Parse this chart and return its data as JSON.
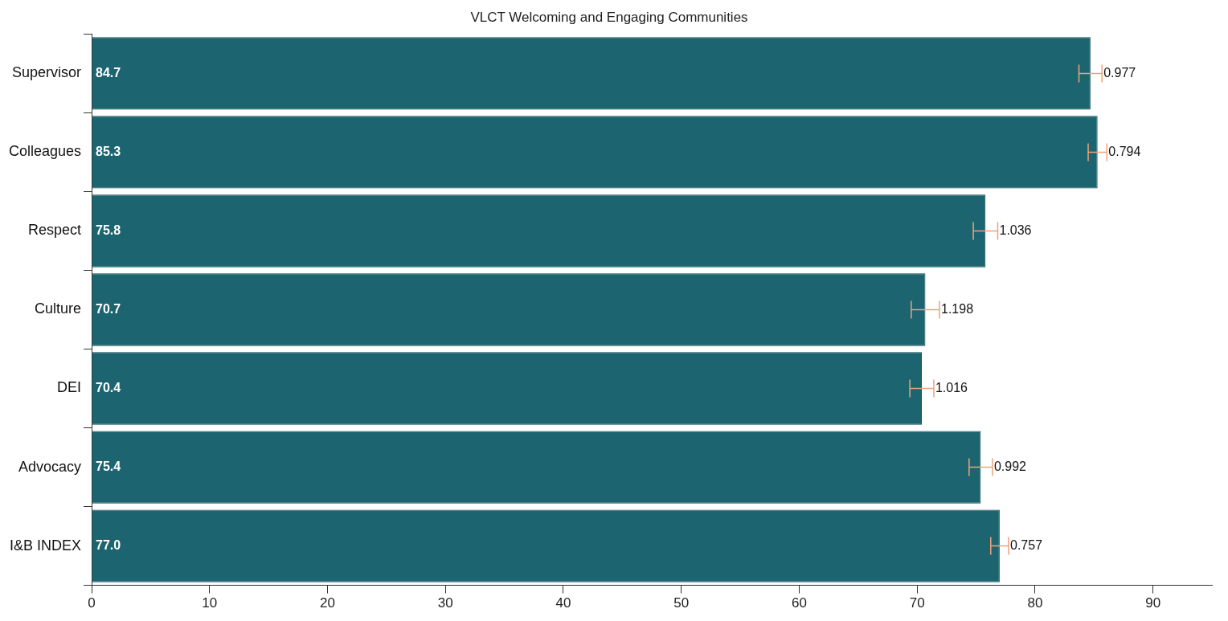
{
  "chart_data": {
    "type": "bar",
    "orientation": "horizontal",
    "title": "VLCT Welcoming and Engaging Communities",
    "categories": [
      "Supervisor",
      "Colleagues",
      "Respect",
      "Culture",
      "DEI",
      "Advocacy",
      "I&B INDEX"
    ],
    "values": [
      84.7,
      85.3,
      75.8,
      70.7,
      70.4,
      75.4,
      77.0
    ],
    "errors": [
      0.977,
      0.794,
      1.036,
      1.198,
      1.016,
      0.992,
      0.757
    ],
    "value_labels": [
      "84.7",
      "85.3",
      "75.8",
      "70.7",
      "70.4",
      "75.4",
      "77.0"
    ],
    "color": "#1b6470",
    "grid": false,
    "legend": false,
    "xlim": [
      0,
      95
    ],
    "xticks": [
      0,
      10,
      20,
      30,
      40,
      50,
      60,
      70,
      80,
      90
    ],
    "annotations": [
      {
        "text": "0.977",
        "x": 85.677,
        "y": "Supervisor"
      },
      {
        "text": "0.794",
        "x": 86.094,
        "y": "Colleagues"
      },
      {
        "text": "1.036",
        "x": 76.836,
        "y": "Respect"
      },
      {
        "text": "1.198",
        "x": 71.898,
        "y": "Culture"
      },
      {
        "text": "1.016",
        "x": 71.416,
        "y": "DEI"
      },
      {
        "text": "0.992",
        "x": 76.392,
        "y": "Advocacy"
      },
      {
        "text": "0.757",
        "x": 77.757,
        "y": "I&B INDEX"
      }
    ]
  }
}
